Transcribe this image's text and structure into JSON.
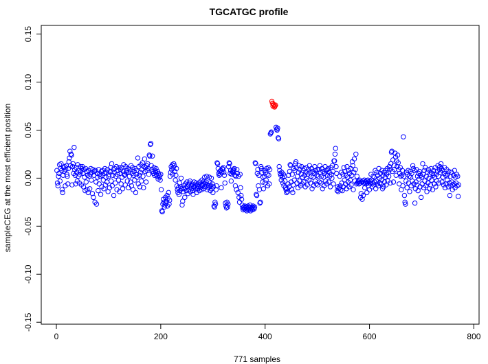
{
  "chart_data": {
    "type": "scatter",
    "title": "TGCATGC profile",
    "xlabel": "771 samples",
    "ylabel": "sampleCEG at the most efficient position",
    "xlim": [
      -29,
      810
    ],
    "ylim": [
      -0.152,
      0.159
    ],
    "x_ticks": [
      0,
      200,
      400,
      600,
      800
    ],
    "x_tick_labels": [
      "0",
      "200",
      "400",
      "600",
      "800"
    ],
    "y_ticks": [
      -0.15,
      -0.1,
      -0.05,
      0,
      0.05,
      0.1,
      0.15
    ],
    "y_tick_labels": [
      "-0.15",
      "-0.10",
      "-0.05",
      "0.00",
      "0.05",
      "0.10",
      "0.15"
    ],
    "grid": false,
    "marker": "open-circle",
    "colors": {
      "points": "#0000ff",
      "highlight": "#ff0000"
    },
    "x_start": 1,
    "highlight_x": [
      413,
      414,
      415,
      416,
      417,
      418,
      419,
      420
    ],
    "y": [
      0.008,
      -0.005,
      -0.008,
      0.002,
      0.005,
      0.014,
      -0.003,
      0.01,
      0.015,
      0.008,
      -0.012,
      -0.015,
      0.003,
      0.011,
      0.007,
      0.012,
      -0.008,
      0.009,
      0.013,
      0.004,
      0.002,
      -0.006,
      0.01,
      0.017,
      0.021,
      0.028,
      0.013,
      0.025,
      0.024,
      -0.007,
      0.012,
      0.015,
      0.005,
      0.032,
      0.009,
      0.003,
      -0.006,
      0.011,
      0.006,
      -0.003,
      0.014,
      0.002,
      0.008,
      -0.005,
      0.004,
      0.012,
      0.007,
      -0.007,
      0.01,
      0.012,
      0.005,
      -0.009,
      0.009,
      0.001,
      -0.013,
      0.01,
      -0.004,
      0.007,
      -0.012,
      0.003,
      -0.015,
      0.008,
      0.002,
      -0.011,
      0.004,
      0.01,
      -0.002,
      0.006,
      -0.016,
      0.009,
      -0.02,
      0.003,
      0.007,
      -0.025,
      0.008,
      -0.004,
      -0.027,
      0.005,
      0.001,
      -0.013,
      0.009,
      -0.006,
      0.004,
      0.002,
      -0.017,
      0.007,
      -0.009,
      0.003,
      0.008,
      -0.002,
      -0.011,
      0.005,
      0.01,
      -0.007,
      0.001,
      0.006,
      -0.004,
      0.009,
      -0.014,
      0.002,
      0.004,
      -0.01,
      0.007,
      0.011,
      -0.003,
      0.015,
      -0.008,
      0.003,
      0.009,
      -0.018,
      0.006,
      0.01,
      -0.005,
      0.002,
      0.012,
      -0.012,
      0.004,
      0.008,
      -0.002,
      0.011,
      -0.014,
      0.005,
      0.009,
      -0.006,
      0.011,
      0.001,
      -0.011,
      0.007,
      0.014,
      0.004,
      0.003,
      -0.007,
      0.012,
      0.006,
      0.008,
      -0.003,
      0.01,
      -0.01,
      0.006,
      0.002,
      0.009,
      -0.004,
      0.013,
      -0.008,
      0.005,
      0.011,
      -0.012,
      0.003,
      0.007,
      -0.002,
      0.01,
      -0.015,
      0.004,
      0.008,
      0.001,
      0.021,
      -0.006,
      0.012,
      0.003,
      -0.009,
      0.006,
      0.014,
      -0.003,
      0.009,
      0.016,
      0.002,
      -0.01,
      0.012,
      0.02,
      0.007,
      0.011,
      -0.004,
      0.013,
      0.008,
      0.015,
      0.01,
      0.004,
      0.024,
      0.023,
      0.035,
      0.036,
      0.013,
      0.009,
      0.023,
      0.007,
      0.005,
      0.011,
      0.003,
      0.008,
      0.006,
      0.01,
      0.004,
      0.002,
      0.007,
      -0.001,
      0.005,
      0.003,
      0.001,
      -0.002,
      0.004,
      -0.012,
      -0.034,
      -0.035,
      -0.027,
      -0.022,
      -0.025,
      -0.03,
      -0.028,
      -0.02,
      -0.026,
      -0.024,
      -0.018,
      -0.029,
      -0.021,
      -0.015,
      -0.027,
      -0.023,
      0.002,
      0.006,
      0.012,
      0.009,
      0.014,
      0.004,
      0.011,
      0.015,
      0.013,
      0.007,
      -0.002,
      0.003,
      0.01,
      -0.008,
      -0.012,
      -0.015,
      -0.01,
      -0.017,
      -0.005,
      -0.013,
      -0.009,
      0.0,
      -0.011,
      -0.028,
      -0.024,
      -0.014,
      -0.008,
      -0.011,
      -0.02,
      -0.006,
      -0.01,
      -0.013,
      -0.004,
      -0.009,
      -0.016,
      -0.007,
      -0.012,
      -0.005,
      -0.003,
      -0.014,
      -0.008,
      -0.011,
      -0.006,
      -0.013,
      -0.017,
      -0.009,
      -0.004,
      -0.01,
      -0.007,
      -0.012,
      -0.005,
      -0.015,
      -0.008,
      -0.011,
      -0.006,
      -0.009,
      -0.013,
      -0.004,
      -0.01,
      -0.007,
      -0.012,
      -0.002,
      -0.008,
      -0.005,
      -0.011,
      -0.003,
      0.001,
      -0.006,
      -0.009,
      -0.004,
      0.002,
      -0.012,
      -0.007,
      -0.01,
      -0.008,
      0.001,
      -0.005,
      -0.013,
      -0.008,
      0.0,
      -0.011,
      -0.006,
      -0.015,
      -0.009,
      -0.029,
      -0.03,
      -0.025,
      -0.027,
      -0.012,
      -0.008,
      0.016,
      0.015,
      0.01,
      0.005,
      0.003,
      0.007,
      0.004,
      0.008,
      -0.01,
      0.006,
      0.01,
      0.009,
      0.011,
      0.006,
      0.003,
      -0.005,
      -0.026,
      -0.029,
      -0.031,
      -0.025,
      -0.03,
      -0.027,
      0.012,
      0.016,
      0.015,
      0.005,
      0.008,
      -0.003,
      0.004,
      0.007,
      0.006,
      0.009,
      0.008,
      0.01,
      0.003,
      -0.008,
      0.002,
      -0.012,
      0.009,
      0.005,
      -0.015,
      0.002,
      -0.02,
      -0.025,
      0.004,
      -0.01,
      -0.018,
      -0.022,
      -0.028,
      -0.031,
      -0.033,
      -0.03,
      -0.032,
      -0.029,
      -0.031,
      -0.033,
      -0.03,
      -0.034,
      -0.032,
      -0.029,
      -0.031,
      -0.033,
      -0.03,
      -0.028,
      -0.034,
      -0.032,
      -0.031,
      -0.03,
      -0.033,
      -0.029,
      -0.031,
      -0.032,
      -0.03,
      0.016,
      0.015,
      -0.017,
      -0.018,
      0.005,
      0.009,
      -0.008,
      0.003,
      -0.012,
      -0.026,
      -0.025,
      0.012,
      0.01,
      0.006,
      -0.004,
      0.001,
      -0.011,
      0.008,
      0.002,
      -0.005,
      0.006,
      -0.002,
      0.01,
      0.004,
      -0.008,
      0.011,
      0.003,
      -0.006,
      0.009,
      0.046,
      0.047,
      0.048,
      0.08,
      0.078,
      0.075,
      0.077,
      0.076,
      0.074,
      0.075,
      0.076,
      0.053,
      0.051,
      0.05,
      0.052,
      0.042,
      0.041,
      0.012,
      0.008,
      0.005,
      0.003,
      -0.002,
      0.006,
      0.001,
      -0.005,
      0.004,
      -0.008,
      0.002,
      -0.003,
      -0.01,
      -0.012,
      -0.015,
      -0.011,
      -0.014,
      -0.006,
      0.003,
      -0.009,
      0.007,
      0.014,
      0.013,
      -0.004,
      -0.012,
      0.004,
      -0.015,
      -0.007,
      0.01,
      -0.002,
      0.008,
      0.015,
      0.017,
      0.011,
      -0.005,
      0.002,
      -0.01,
      0.006,
      0.013,
      -0.003,
      0.009,
      -0.008,
      0.004,
      0.012,
      -0.006,
      0.001,
      0.008,
      -0.004,
      0.01,
      0.003,
      -0.009,
      0.006,
      0.011,
      0.0,
      -0.007,
      0.004,
      0.009,
      -0.002,
      0.013,
      0.006,
      -0.005,
      0.002,
      0.01,
      -0.011,
      0.007,
      0.001,
      -0.008,
      0.005,
      0.012,
      -0.003,
      0.008,
      -0.006,
      0.003,
      0.009,
      -0.007,
      0.002,
      0.009,
      -0.004,
      0.013,
      0.006,
      -0.005,
      0.002,
      0.01,
      -0.011,
      0.007,
      0.001,
      -0.008,
      0.005,
      0.012,
      -0.003,
      0.008,
      -0.006,
      0.003,
      0.009,
      0.01,
      -0.004,
      0.006,
      0.002,
      -0.009,
      0.011,
      0.004,
      0.0,
      0.013,
      0.007,
      -0.006,
      0.018,
      0.018,
      0.025,
      0.031,
      0.012,
      0.005,
      -0.013,
      -0.009,
      -0.014,
      -0.011,
      -0.01,
      0.002,
      -0.008,
      -0.012,
      0.006,
      -0.005,
      -0.013,
      0.004,
      -0.009,
      0.011,
      -0.002,
      0.007,
      -0.006,
      0.003,
      -0.011,
      0.012,
      0.001,
      -0.004,
      0.008,
      -0.009,
      0.005,
      -0.002,
      0.01,
      -0.007,
      0.003,
      0.017,
      0.013,
      -0.012,
      0.006,
      0.02,
      -0.003,
      0.009,
      0.025,
      -0.006,
      0.002,
      -0.005,
      -0.004,
      -0.003,
      -0.006,
      -0.002,
      -0.005,
      -0.02,
      -0.016,
      -0.004,
      -0.022,
      -0.003,
      -0.018,
      -0.005,
      -0.002,
      -0.01,
      -0.004,
      -0.006,
      -0.003,
      -0.015,
      -0.005,
      -0.002,
      -0.008,
      -0.004,
      -0.012,
      -0.003,
      -0.006,
      0.004,
      -0.002,
      -0.009,
      -0.005,
      0.002,
      -0.007,
      0.001,
      -0.004,
      0.008,
      -0.011,
      -0.003,
      0.006,
      -0.006,
      0.003,
      -0.008,
      0.01,
      0.0,
      -0.005,
      0.005,
      -0.006,
      -0.002,
      0.008,
      -0.011,
      0.003,
      -0.009,
      0.006,
      -0.004,
      0.001,
      0.008,
      -0.007,
      0.004,
      0.01,
      -0.003,
      0.006,
      0.002,
      0.012,
      0.009,
      -0.005,
      0.015,
      0.027,
      0.028,
      0.007,
      0.019,
      -0.004,
      0.013,
      0.009,
      0.026,
      0.022,
      0.003,
      0.018,
      0.012,
      0.024,
      0.016,
      0.009,
      -0.006,
      0.005,
      0.011,
      0.002,
      -0.012,
      0.003,
      0.008,
      -0.008,
      0.043,
      0.002,
      -0.018,
      -0.025,
      -0.027,
      -0.003,
      0.006,
      -0.01,
      0.004,
      0.008,
      -0.005,
      0.002,
      -0.014,
      0.007,
      0.001,
      -0.008,
      0.005,
      -0.003,
      0.013,
      0.01,
      -0.006,
      0.008,
      -0.026,
      -0.011,
      -0.004,
      0.009,
      -0.007,
      0.002,
      -0.013,
      0.005,
      -0.001,
      0.007,
      -0.009,
      0.003,
      -0.02,
      0.001,
      -0.006,
      0.015,
      0.004,
      -0.01,
      0.008,
      -0.003,
      0.011,
      -0.008,
      0.002,
      -0.014,
      0.006,
      -0.005,
      0.009,
      0.0,
      -0.011,
      0.004,
      -0.007,
      0.01,
      -0.002,
      0.005,
      -0.012,
      0.003,
      0.008,
      -0.006,
      0.001,
      0.011,
      -0.009,
      0.004,
      -0.003,
      0.007,
      0.013,
      0.002,
      -0.005,
      0.009,
      0.012,
      0.006,
      0.015,
      0.01,
      -0.004,
      0.008,
      0.001,
      -0.007,
      0.005,
      0.011,
      -0.01,
      0.003,
      -0.006,
      0.009,
      -0.002,
      0.004,
      -0.009,
      0.007,
      -0.005,
      -0.018,
      0.002,
      -0.008,
      0.006,
      -0.004,
      -0.012,
      -0.007,
      0.003,
      -0.006,
      0.008,
      -0.01,
      0.001,
      -0.005,
      0.004,
      -0.008,
      0.002,
      -0.019,
      -0.007
    ]
  }
}
